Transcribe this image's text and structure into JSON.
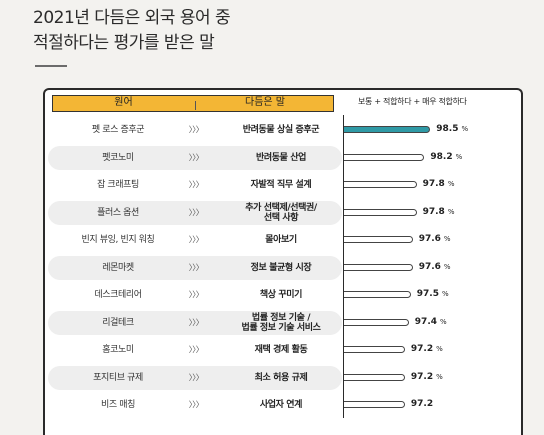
{
  "title": {
    "line1": "2021년 다듬은 외국 용어 중",
    "line2": "적절하다는 평가를 받은 말"
  },
  "table_header": {
    "term": "원어",
    "meaning": "다듬은 말"
  },
  "legend_text": "보통 + 적합하다 + 매우 적합하다",
  "arrow_glyph": "〉〉〉",
  "chart_data": {
    "type": "bar",
    "orientation": "horizontal",
    "xlim": [
      0,
      100
    ],
    "categories": [
      "펫 로스 증후군",
      "펫코노미",
      "잡 크래프팅",
      "플러스 옵션",
      "빈지 뷰잉, 빈지 워칭",
      "레몬마켓",
      "데스크테리어",
      "리걸테크",
      "홈코노미",
      "포지티브 규제",
      "비즈 매칭"
    ],
    "meanings": [
      "반려동물 상실 증후군",
      "반려동물 산업",
      "자발적 직무 설계",
      "추가 선택제/선택권/\n선택 사항",
      "몰아보기",
      "정보 불균형 시장",
      "책상 꾸미기",
      "법률 정보 기술 /\n법률 정보 기술 서비스",
      "재택 경제 활동",
      "최소 허용 규제",
      "사업자 연계"
    ],
    "values": [
      98.5,
      98.2,
      97.8,
      97.8,
      97.6,
      97.6,
      97.5,
      97.4,
      97.2,
      97.2,
      97.2
    ],
    "value_labels": [
      "98.5",
      "98.2",
      "97.8",
      "97.8",
      "97.6",
      "97.6",
      "97.5",
      "97.4",
      "97.2",
      "97.2",
      "97.2"
    ],
    "units": [
      "%",
      "%",
      "%",
      "%",
      "%",
      "%",
      "%",
      "%",
      "%",
      "%",
      ""
    ],
    "highlight_index": 0,
    "colors": {
      "highlight": "#2f9aa6",
      "bar": "#ffffff",
      "header": "#f3b635"
    }
  }
}
